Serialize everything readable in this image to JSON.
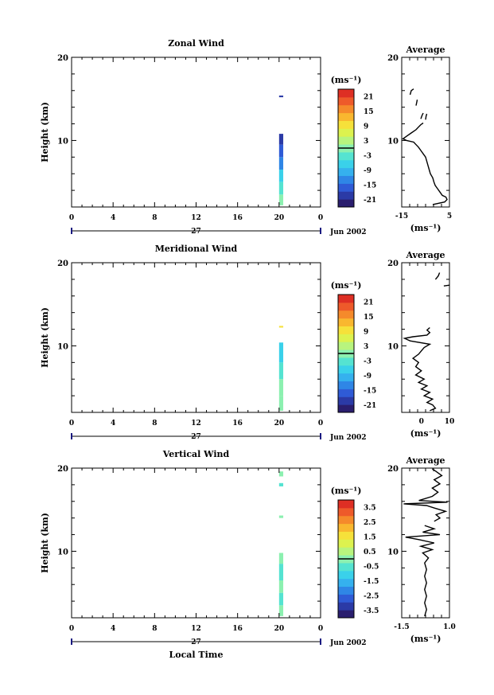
{
  "chart_data": [
    {
      "type": "heatmap",
      "title": "Zonal Wind",
      "ylabel": "Height (km)",
      "ylim": [
        2,
        20
      ],
      "y_ticks": [
        "20",
        "10"
      ],
      "x_ticks": [
        "0",
        "4",
        "8",
        "12",
        "16",
        "20",
        "0"
      ],
      "xlim": [
        0,
        24
      ],
      "date_label": "27",
      "month_label": "Jun 2002",
      "colorbar": {
        "unit": "(ms⁻¹)",
        "tick_labels": [
          "21",
          "15",
          "9",
          "3",
          "-3",
          "-9",
          "-15",
          "-21"
        ],
        "range": [
          -24,
          24
        ],
        "zero_line": 0
      },
      "data_columns": [
        {
          "time_start": 20.0,
          "time_end": 20.4,
          "segments": [
            {
              "h0": 2.2,
              "h1": 3.5,
              "value": 1
            },
            {
              "h0": 3.5,
              "h1": 5.0,
              "value": -3
            },
            {
              "h0": 5.0,
              "h1": 6.5,
              "value": -8
            },
            {
              "h0": 6.5,
              "h1": 8.0,
              "value": -12
            },
            {
              "h0": 8.0,
              "h1": 9.5,
              "value": -16
            },
            {
              "h0": 9.5,
              "h1": 10.8,
              "value": -19
            },
            {
              "h0": 15.2,
              "h1": 15.4,
              "value": -20
            }
          ]
        }
      ],
      "average_profile": {
        "title": "Average",
        "xlabel": "(ms⁻¹)",
        "x_ticks": [
          "-15",
          "5"
        ],
        "xlim": [
          -15,
          5
        ],
        "y_ticks": [
          "20",
          "10"
        ],
        "segments": [
          [
            [
              -2,
              2.3
            ],
            [
              3,
              2.6
            ],
            [
              4,
              2.9
            ],
            [
              3.5,
              3.2
            ],
            [
              2,
              3.4
            ],
            [
              1,
              3.8
            ],
            [
              0,
              4.2
            ],
            [
              -1,
              4.6
            ],
            [
              -1.5,
              5
            ],
            [
              -2,
              5.5
            ],
            [
              -3,
              6
            ],
            [
              -3.5,
              6.5
            ],
            [
              -4,
              7
            ],
            [
              -4.5,
              7.5
            ],
            [
              -5,
              8
            ],
            [
              -6,
              8.4
            ],
            [
              -7,
              8.8
            ],
            [
              -8,
              9.2
            ],
            [
              -9,
              9.5
            ],
            [
              -10,
              9.8
            ],
            [
              -13,
              10
            ],
            [
              -14.5,
              10.2
            ],
            [
              -13,
              10.5
            ],
            [
              -11,
              10.9
            ],
            [
              -9,
              11.3
            ],
            [
              -8,
              11.6
            ],
            [
              -7,
              11.9
            ],
            [
              -6,
              12.1
            ]
          ],
          [
            [
              -7,
              12.6
            ],
            [
              -6.5,
              13
            ],
            [
              -6,
              13.3
            ]
          ],
          [
            [
              -5,
              12.5
            ],
            [
              -4.8,
              12.9
            ],
            [
              -4.5,
              13.2
            ]
          ],
          [
            [
              -9,
              14.2
            ],
            [
              -8.7,
              14.6
            ],
            [
              -8.5,
              14.9
            ]
          ],
          [
            [
              -11.5,
              15.5
            ],
            [
              -11,
              16
            ],
            [
              -10,
              16.2
            ]
          ]
        ]
      }
    },
    {
      "type": "heatmap",
      "title": "Meridional Wind",
      "ylabel": "Height (km)",
      "ylim": [
        2,
        20
      ],
      "y_ticks": [
        "20",
        "10"
      ],
      "x_ticks": [
        "0",
        "4",
        "8",
        "12",
        "16",
        "20",
        "0"
      ],
      "xlim": [
        0,
        24
      ],
      "date_label": "27",
      "month_label": "Jun 2002",
      "colorbar": {
        "unit": "(ms⁻¹)",
        "tick_labels": [
          "21",
          "15",
          "9",
          "3",
          "-3",
          "-9",
          "-15",
          "-21"
        ],
        "range": [
          -24,
          24
        ],
        "zero_line": 0
      },
      "data_columns": [
        {
          "time_start": 20.0,
          "time_end": 20.4,
          "segments": [
            {
              "h0": 2.2,
              "h1": 4.0,
              "value": 1
            },
            {
              "h0": 4.0,
              "h1": 6.0,
              "value": 0
            },
            {
              "h0": 6.0,
              "h1": 8.0,
              "value": -2
            },
            {
              "h0": 8.0,
              "h1": 10.4,
              "value": -5
            },
            {
              "h0": 12.2,
              "h1": 12.4,
              "value": 8
            }
          ]
        }
      ],
      "average_profile": {
        "title": "Average",
        "xlabel": "(ms⁻¹)",
        "x_ticks": [
          "0",
          "10"
        ],
        "xlim": [
          -7,
          10
        ],
        "y_ticks": [
          "20",
          "10"
        ],
        "segments": [
          [
            [
              3,
              2.2
            ],
            [
              5,
              2.5
            ],
            [
              4,
              2.9
            ],
            [
              2,
              3.2
            ],
            [
              4,
              3.6
            ],
            [
              1,
              4.0
            ],
            [
              3,
              4.4
            ],
            [
              0,
              4.8
            ],
            [
              2,
              5.2
            ],
            [
              -1,
              5.6
            ],
            [
              1,
              6.0
            ],
            [
              -2,
              6.5
            ],
            [
              0,
              7.0
            ],
            [
              -2,
              7.5
            ],
            [
              -1,
              8.0
            ],
            [
              -3,
              8.5
            ],
            [
              -1,
              9.0
            ],
            [
              0,
              9.4
            ],
            [
              1,
              9.8
            ],
            [
              3,
              10.2
            ],
            [
              -4,
              10.6
            ],
            [
              -6,
              10.9
            ],
            [
              -3,
              11.1
            ],
            [
              2,
              11.3
            ],
            [
              3,
              11.6
            ],
            [
              2,
              11.9
            ],
            [
              3,
              12.2
            ]
          ],
          [
            [
              5,
              18.0
            ],
            [
              6,
              18.4
            ],
            [
              6.5,
              18.8
            ]
          ],
          [
            [
              8,
              17.2
            ],
            [
              10,
              17.3
            ]
          ]
        ]
      }
    },
    {
      "type": "heatmap",
      "title": "Vertical Wind",
      "ylabel": "Height (km)",
      "xlabel": "Local Time",
      "ylim": [
        2,
        20
      ],
      "y_ticks": [
        "20",
        "10"
      ],
      "x_ticks": [
        "0",
        "4",
        "8",
        "12",
        "16",
        "20",
        "0"
      ],
      "xlim": [
        0,
        24
      ],
      "date_label": "27",
      "month_label": "Jun 2002",
      "colorbar": {
        "unit": "(ms⁻¹)",
        "tick_labels": [
          "3.5",
          "2.5",
          "1.5",
          "0.5",
          "-0.5",
          "-1.5",
          "-2.5",
          "-3.5"
        ],
        "range": [
          -4,
          4
        ],
        "zero_line": 0
      },
      "data_columns": [
        {
          "time_start": 20.0,
          "time_end": 20.4,
          "segments": [
            {
              "h0": 2.2,
              "h1": 3.5,
              "value": -0.2
            },
            {
              "h0": 3.5,
              "h1": 5.0,
              "value": -0.4
            },
            {
              "h0": 5.0,
              "h1": 6.5,
              "value": -0.1
            },
            {
              "h0": 6.5,
              "h1": 8.5,
              "value": -0.3
            },
            {
              "h0": 8.5,
              "h1": 9.8,
              "value": 0.2
            },
            {
              "h0": 14.0,
              "h1": 14.3,
              "value": -0.2
            },
            {
              "h0": 17.8,
              "h1": 18.2,
              "value": -0.3
            },
            {
              "h0": 19.0,
              "h1": 19.6,
              "value": 0.1
            }
          ]
        }
      ],
      "average_profile": {
        "title": "Average",
        "xlabel": "(ms⁻¹)",
        "x_ticks": [
          "-1.5",
          "1.0"
        ],
        "xlim": [
          -1.5,
          1.0
        ],
        "y_ticks": [
          "20",
          "10"
        ],
        "segments": [
          [
            [
              -0.3,
              2.2
            ],
            [
              -0.2,
              3.0
            ],
            [
              -0.3,
              3.8
            ],
            [
              -0.2,
              4.6
            ],
            [
              -0.3,
              5.4
            ],
            [
              -0.2,
              6.2
            ],
            [
              -0.3,
              7.0
            ],
            [
              -0.2,
              7.8
            ],
            [
              -0.3,
              8.6
            ],
            [
              -0.1,
              9.2
            ],
            [
              -0.4,
              9.8
            ],
            [
              0.1,
              10.2
            ],
            [
              -0.5,
              10.6
            ],
            [
              0.2,
              11.0
            ],
            [
              -0.6,
              11.4
            ],
            [
              -1.3,
              11.7
            ],
            [
              0.5,
              12.0
            ],
            [
              -0.4,
              12.3
            ],
            [
              0.2,
              12.7
            ],
            [
              -0.3,
              13.1
            ]
          ],
          [
            [
              0.2,
              13.6
            ],
            [
              0.5,
              14.0
            ],
            [
              0.3,
              14.4
            ],
            [
              0.8,
              14.8
            ],
            [
              0.2,
              15.2
            ],
            [
              -0.2,
              15.5
            ],
            [
              -1.4,
              15.7
            ],
            [
              0.9,
              15.9
            ],
            [
              -0.6,
              16.1
            ],
            [
              0.1,
              16.6
            ],
            [
              0.4,
              17.1
            ],
            [
              0.1,
              17.6
            ],
            [
              0.5,
              18.1
            ],
            [
              0.2,
              18.6
            ],
            [
              0.6,
              19.1
            ],
            [
              0.3,
              19.6
            ],
            [
              0.1,
              19.9
            ]
          ]
        ]
      }
    }
  ]
}
